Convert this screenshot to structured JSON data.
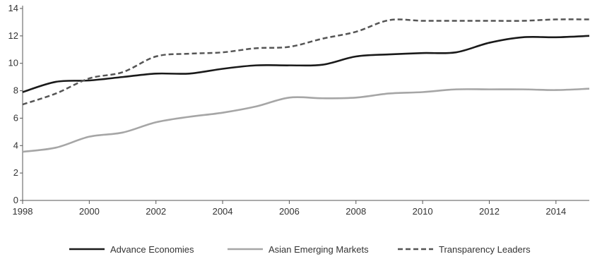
{
  "chart_data": {
    "type": "line",
    "title": "",
    "xlabel": "",
    "ylabel": "",
    "xlim": [
      1998,
      2015
    ],
    "ylim": [
      0,
      14
    ],
    "x": [
      1998,
      1999,
      2000,
      2001,
      2002,
      2003,
      2004,
      2005,
      2006,
      2007,
      2008,
      2009,
      2010,
      2011,
      2012,
      2013,
      2014,
      2015
    ],
    "x_ticks": [
      "1998",
      "2000",
      "2002",
      "2004",
      "2006",
      "2008",
      "2010",
      "2012",
      "2014"
    ],
    "y_ticks": [
      "0",
      "2",
      "4",
      "6",
      "8",
      "10",
      "12",
      "14"
    ],
    "grid": false,
    "legend_position": "bottom",
    "series": [
      {
        "name": "Advance Economies",
        "color": "#1a1a1a",
        "style": "solid",
        "values": [
          7.9,
          8.65,
          8.75,
          9.0,
          9.25,
          9.25,
          9.6,
          9.85,
          9.85,
          9.9,
          10.5,
          10.65,
          10.75,
          10.8,
          11.5,
          11.9,
          11.9,
          12.0
        ]
      },
      {
        "name": "Asian Emerging Markets",
        "color": "#a6a6a6",
        "style": "solid",
        "values": [
          3.55,
          3.85,
          4.65,
          4.95,
          5.7,
          6.1,
          6.4,
          6.85,
          7.5,
          7.45,
          7.5,
          7.8,
          7.9,
          8.1,
          8.1,
          8.1,
          8.05,
          8.15
        ]
      },
      {
        "name": "Transparency Leaders",
        "color": "#555555",
        "style": "dashed",
        "values": [
          7.0,
          7.8,
          8.9,
          9.35,
          10.5,
          10.7,
          10.8,
          11.1,
          11.2,
          11.8,
          12.3,
          13.15,
          13.1,
          13.1,
          13.1,
          13.1,
          13.2,
          13.2
        ]
      }
    ]
  }
}
